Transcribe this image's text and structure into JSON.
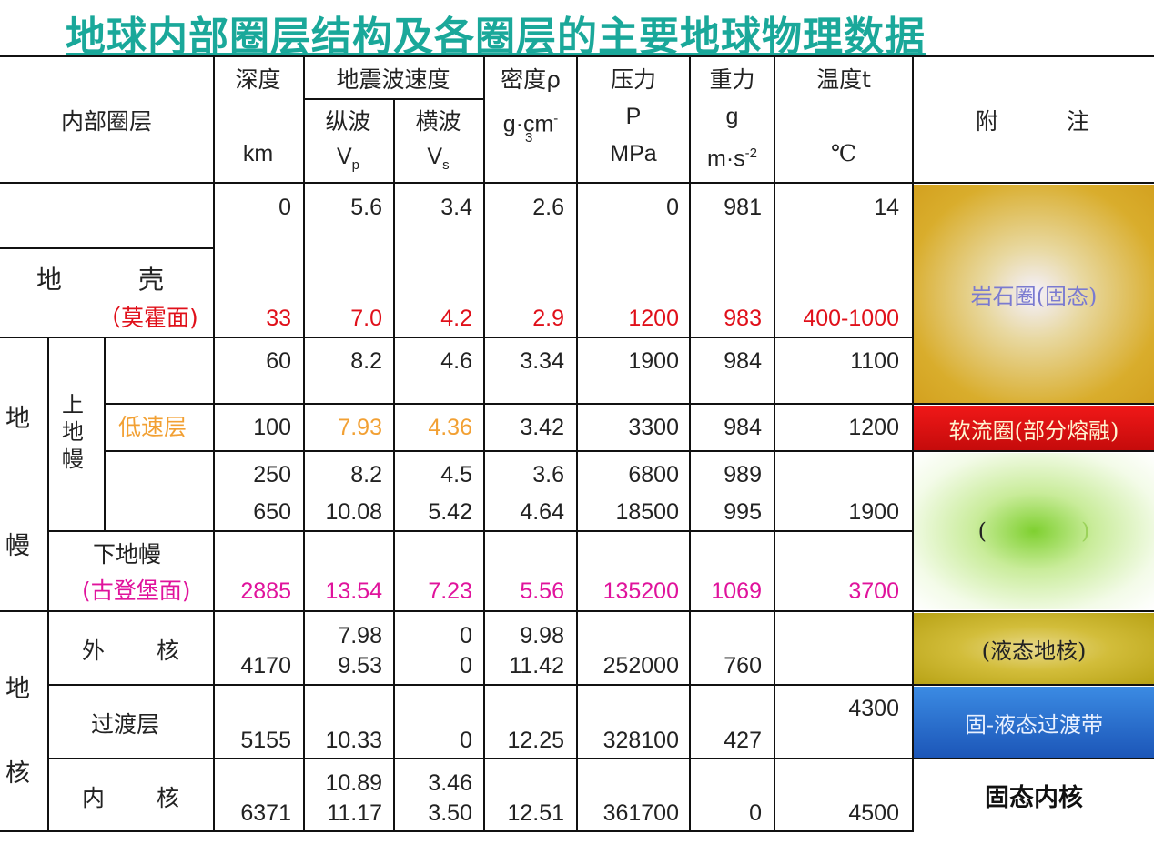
{
  "title": "地球内部圈层结构及各圈层的主要地球物理数据",
  "header": {
    "layer": "内部圈层",
    "depth": "深度",
    "depth_unit": "km",
    "seismic": "地震波速度",
    "vp_name": "纵波",
    "vp_sym": "V",
    "vp_sub": "p",
    "vs_name": "横波",
    "vs_sym": "V",
    "vs_sub": "s",
    "density": "密度ρ",
    "density_unit": "g·cm",
    "density_exp": "-",
    "density_exp2": "3",
    "pressure": "压力",
    "pressure_sym": "P",
    "pressure_unit": "MPa",
    "gravity": "重力",
    "gravity_sym": "g",
    "gravity_unit": "m·s",
    "gravity_exp": "-2",
    "temp": "温度t",
    "temp_unit": "℃",
    "note": "附",
    "note2": "注"
  },
  "labels": {
    "crust": "地",
    "crust2": "壳",
    "moho": "（莫霍面)",
    "mantle1": "地",
    "mantle2": "幔",
    "upper_mantle": "上地幔",
    "low_velocity": "低速层",
    "lower_mantle": "下地幔",
    "gutenberg": "(古登堡面)",
    "core1": "地",
    "core2": "核",
    "outer_core": "外",
    "outer_core2": "核",
    "transition": "过渡层",
    "inner_core": "内",
    "inner_core2": "核"
  },
  "rows": {
    "r1": [
      "0",
      "5.6",
      "3.4",
      "2.6",
      "0",
      "981",
      "14"
    ],
    "moho": [
      "33",
      "7.0",
      "4.2",
      "2.9",
      "1200",
      "983",
      "400-1000"
    ],
    "r3": [
      "60",
      "8.2",
      "4.6",
      "3.34",
      "1900",
      "984",
      "1100"
    ],
    "lvz": [
      "100",
      "7.93",
      "4.36",
      "3.42",
      "3300",
      "984",
      "1200"
    ],
    "r5": [
      "250",
      "8.2",
      "4.5",
      "3.6",
      "6800",
      "989",
      ""
    ],
    "r6": [
      "650",
      "10.08",
      "5.42",
      "4.64",
      "18500",
      "995",
      "1900"
    ],
    "gut": [
      "2885",
      "13.54",
      "7.23",
      "5.56",
      "135200",
      "1069",
      "3700"
    ],
    "outer_a": [
      "",
      "7.98",
      "0",
      "9.98",
      "",
      "",
      ""
    ],
    "outer_b": [
      "4170",
      "9.53",
      "0",
      "11.42",
      "252000",
      "760",
      ""
    ],
    "trans_t": [
      "",
      "",
      "",
      "",
      "",
      "",
      "4300"
    ],
    "trans": [
      "5155",
      "10.33",
      "0",
      "12.25",
      "328100",
      "427",
      ""
    ],
    "inner_a": [
      "",
      "10.89",
      "3.46",
      "",
      "",
      "",
      ""
    ],
    "inner_b": [
      "6371",
      "11.17",
      "3.50",
      "12.51",
      "361700",
      "0",
      "4500"
    ]
  },
  "notes": {
    "lithosphere": "岩石圈(固态)",
    "asthenosphere": "软流圈(部分熔融)",
    "mesosphere": "(",
    "mesosphere_close": ")",
    "liquid_core": "(液态地核)",
    "transition_zone": "固-液态过渡带",
    "solid_core": "固态内核"
  },
  "colors": {
    "title": "#1aa89a",
    "red": "#e0101a",
    "orange": "#f2a033",
    "magenta": "#e0139c",
    "lithosphere": "#d9ad2c",
    "asthenosphere": "#e21212",
    "mesosphere": "#8fd83a",
    "liquid_core": "#c8b21a",
    "transition_zone": "#1f63c7"
  }
}
